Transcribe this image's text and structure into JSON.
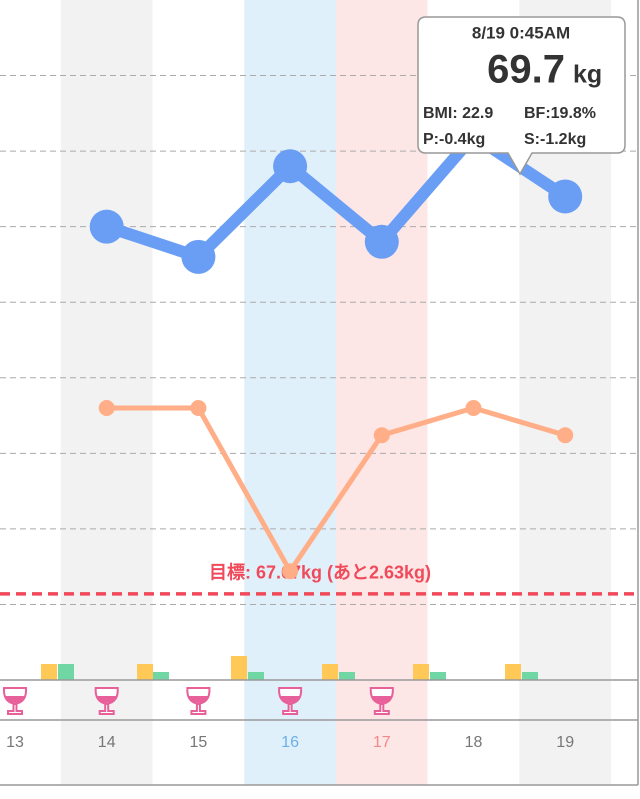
{
  "chart_data": {
    "type": "line",
    "categories": [
      "13",
      "14",
      "15",
      "16",
      "17",
      "18",
      "19"
    ],
    "series": [
      {
        "color": "#6a9ef5",
        "values": [
          null,
          69.5,
          69.3,
          69.9,
          69.4,
          70.1,
          69.7
        ]
      },
      {
        "color": "#ffae88",
        "axis": "y2",
        "values": [
          null,
          20.0,
          20.0,
          18.8,
          19.8,
          20.0,
          19.8
        ]
      }
    ],
    "ylim": [
      66.5,
      71.0
    ],
    "yticks": [
      67,
      67.5,
      68,
      68.5,
      69,
      69.5,
      70,
      70.5
    ],
    "y2lim": [
      18,
      23
    ],
    "grid": true,
    "column_fills": [
      "#ffffff",
      "#f2f2f2",
      "#ffffff",
      "#e0f0fb",
      "#fde6e6",
      "#ffffff",
      "#f2f2f2"
    ],
    "label_colors": [
      "#777777",
      "#777777",
      "#777777",
      "#6ab0e8",
      "#f08a8a",
      "#777777",
      "#777777"
    ],
    "goal": 67.07,
    "goal_color": "#f04a5a",
    "goal_label": "目標: 67.07kg (あと2.63kg)",
    "tooltip": {
      "date": "8/19 0:45AM",
      "unit": "kg",
      "bmi": "BMI: 22.9",
      "bf": "BF:19.8%",
      "p": "P:-0.4kg",
      "s": "S:-1.2kg"
    }
  }
}
